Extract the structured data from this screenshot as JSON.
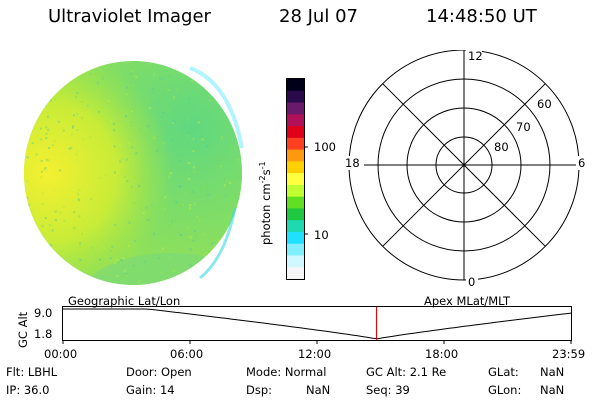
{
  "header": {
    "instrument": "Ultraviolet Imager",
    "date": "28 Jul 07",
    "time": "14:48:50 UT"
  },
  "colorbar": {
    "unit_label": "photon cm",
    "unit_exp1": "-2",
    "unit_s": "s",
    "unit_exp2": "-1",
    "ticks": [
      "100",
      "10"
    ],
    "colors": [
      "#00001a",
      "#2a0a4a",
      "#6a1a6a",
      "#b0105a",
      "#e0001a",
      "#ff4020",
      "#ff9a10",
      "#ffd000",
      "#ffff40",
      "#c0ff30",
      "#60e020",
      "#20c840",
      "#20d8b0",
      "#20e0ff",
      "#80f0ff",
      "#d0f8ff",
      "#f6f6f6"
    ]
  },
  "polar_plot": {
    "clock_labels": [
      "12",
      "18",
      "6",
      "0"
    ],
    "lat_labels": [
      "60",
      "70",
      "80"
    ]
  },
  "timeline": {
    "axis_label": "GC Alt",
    "left_label": "Geographic Lat/Lon",
    "right_label": "Apex MLat/MLT",
    "y_ticks": [
      "9.0",
      "1.8"
    ],
    "x_ticks": [
      "00:00",
      "06:00",
      "12:00",
      "18:00",
      "23:59"
    ],
    "marker_time_fraction": 0.6172
  },
  "status": {
    "flt": "Flt: LBHL",
    "ip": "IP: 36.0",
    "door": "Door: Open",
    "gain": "Gain: 14",
    "mode": "Mode: Normal",
    "dsp": "Dsp:",
    "dsp_val": "NaN",
    "gc_alt": "GC Alt: 2.1 Re",
    "seq": "Seq: 39",
    "glat": "GLat:",
    "glat_val": "NaN",
    "glon": "GLon:",
    "glon_val": "NaN"
  }
}
